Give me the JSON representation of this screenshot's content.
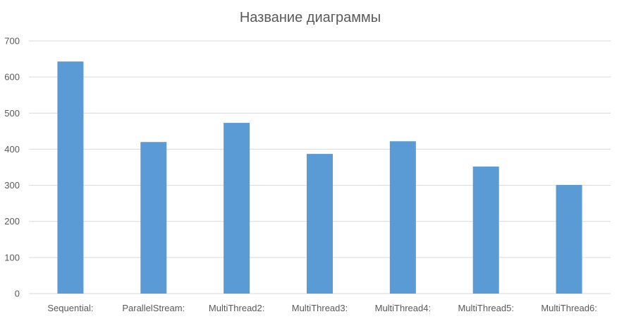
{
  "chart_data": {
    "type": "bar",
    "title": "Название диаграммы",
    "xlabel": "",
    "ylabel": "",
    "categories": [
      "Sequential:",
      "ParallelStream:",
      "MultiThread2:",
      "MultiThread3:",
      "MultiThread4:",
      "MultiThread5:",
      "MultiThread6:"
    ],
    "values": [
      643,
      420,
      473,
      387,
      422,
      352,
      301
    ],
    "ylim": [
      0,
      700
    ],
    "yticks": [
      "0",
      "100",
      "200",
      "300",
      "400",
      "500",
      "600",
      "700"
    ],
    "grid": true,
    "legend": "none",
    "bar_color": "#5B9BD5",
    "grid_color": "#D9D9D9",
    "text_color": "#595959"
  }
}
